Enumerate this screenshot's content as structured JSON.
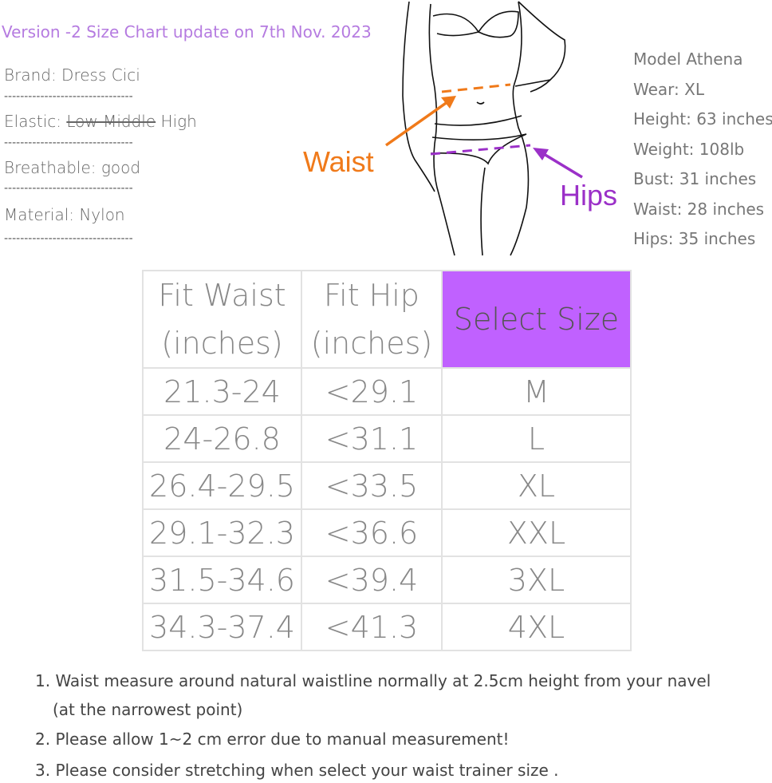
{
  "version_note": "Version -2 Size Chart update on 7th Nov. 2023",
  "specs": {
    "brand": "Brand: Dress Cici",
    "elastic_label": "Elastic: ",
    "elastic_struck": "Low Middle",
    "elastic_value": " High",
    "breathable": "Breathable: good",
    "material": "Material: Nylon",
    "separator": "--------------------------------"
  },
  "figure": {
    "waist_label": "Waist",
    "hips_label": "Hips",
    "waist_color": "#f07a1a",
    "hips_color": "#9b30c8"
  },
  "model": [
    "Model Athena",
    "Wear: XL",
    "Height: 63 inches",
    "Weight: 108lb",
    "Bust: 31 inches",
    "Waist: 28 inches",
    "Hips: 35 inches"
  ],
  "table": {
    "headers": [
      [
        "Fit Waist",
        "(inches)"
      ],
      [
        "Fit Hip",
        "(inches)"
      ],
      [
        "Select Size"
      ]
    ],
    "highlight_color": "#c061ff",
    "rows": [
      [
        "21.3-24",
        "<29.1",
        "M"
      ],
      [
        "24-26.8",
        "<31.1",
        "L"
      ],
      [
        "26.4-29.5",
        "<33.5",
        "XL"
      ],
      [
        "29.1-32.3",
        "<36.6",
        "XXL"
      ],
      [
        "31.5-34.6",
        "<39.4",
        "3XL"
      ],
      [
        "34.3-37.4",
        "<41.3",
        "4XL"
      ]
    ]
  },
  "notes": [
    "1. Waist measure around natural waistline normally at 2.5cm height from your navel",
    "(at the narrowest point)",
    "2. Please allow 1~2 cm error due to manual measurement!",
    "3. Please consider stretching when select your waist trainer size ."
  ]
}
